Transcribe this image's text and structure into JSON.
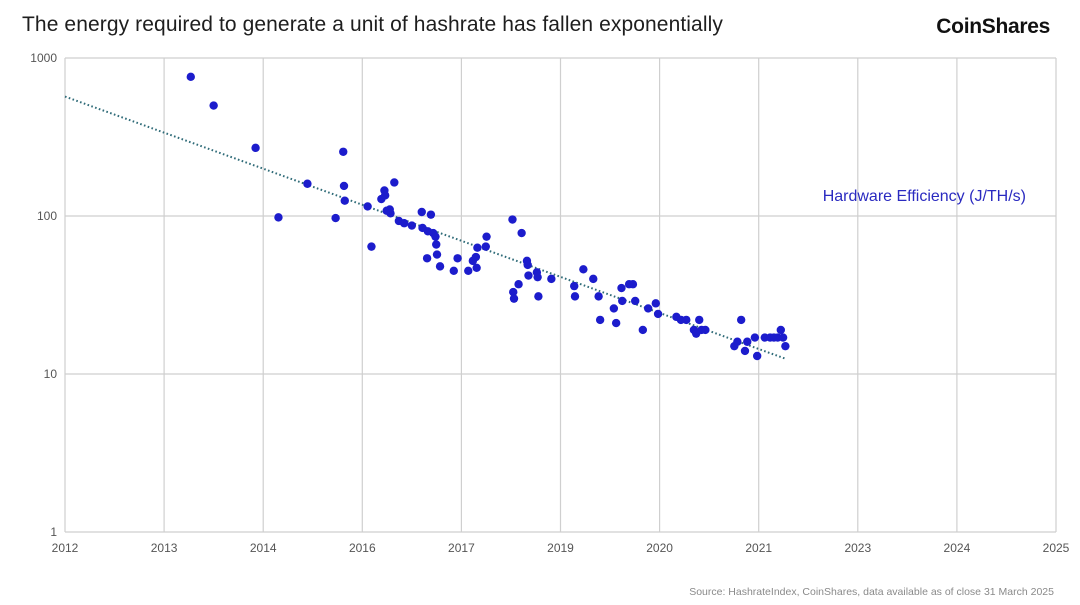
{
  "header": {
    "title": "The energy required to generate a unit of hashrate has fallen exponentially",
    "logo_text": "CoinShares"
  },
  "footer": {
    "source": "Source: HashrateIndex, CoinShares, data available as of close 31 March 2025"
  },
  "colors": {
    "points": "#1c1ccc",
    "trend": "#2f6b78",
    "grid": "#cfcfcf",
    "series_label": "#2a2ac0"
  },
  "chart_data": {
    "type": "scatter",
    "title": "",
    "xlabel": "",
    "ylabel": "",
    "y_scale": "log",
    "ylim": [
      1,
      1000
    ],
    "xlim": [
      2012,
      2025
    ],
    "grid": true,
    "y_ticks": [
      1,
      10,
      100,
      1000
    ],
    "x_tick_labels": [
      "2012",
      "2013",
      "2014",
      "2016",
      "2017",
      "2019",
      "2020",
      "2021",
      "2023",
      "2024",
      "2025"
    ],
    "series": [
      {
        "name": "Hardware Efficiency (J/TH/s)",
        "points": [
          [
            2013.65,
            760
          ],
          [
            2013.95,
            500
          ],
          [
            2014.5,
            270
          ],
          [
            2014.8,
            98
          ],
          [
            2015.18,
            160
          ],
          [
            2015.55,
            97
          ],
          [
            2015.65,
            255
          ],
          [
            2015.66,
            155
          ],
          [
            2015.67,
            125
          ],
          [
            2015.97,
            115
          ],
          [
            2016.02,
            64
          ],
          [
            2016.15,
            128
          ],
          [
            2016.19,
            145
          ],
          [
            2016.2,
            135
          ],
          [
            2016.22,
            108
          ],
          [
            2016.26,
            110
          ],
          [
            2016.27,
            104
          ],
          [
            2016.32,
            163
          ],
          [
            2016.38,
            93
          ],
          [
            2016.45,
            90
          ],
          [
            2016.55,
            87
          ],
          [
            2016.68,
            106
          ],
          [
            2016.69,
            84
          ],
          [
            2016.75,
            54
          ],
          [
            2016.76,
            80
          ],
          [
            2016.8,
            102
          ],
          [
            2016.83,
            78
          ],
          [
            2016.86,
            74
          ],
          [
            2016.87,
            66
          ],
          [
            2016.88,
            57
          ],
          [
            2016.92,
            48
          ],
          [
            2017.1,
            45
          ],
          [
            2017.15,
            54
          ],
          [
            2017.29,
            45
          ],
          [
            2017.35,
            52
          ],
          [
            2017.39,
            55
          ],
          [
            2017.4,
            47
          ],
          [
            2017.41,
            63
          ],
          [
            2017.52,
            64
          ],
          [
            2017.53,
            74
          ],
          [
            2017.87,
            95
          ],
          [
            2017.88,
            33
          ],
          [
            2017.89,
            30
          ],
          [
            2017.95,
            37
          ],
          [
            2017.99,
            78
          ],
          [
            2018.06,
            52
          ],
          [
            2018.07,
            49
          ],
          [
            2018.08,
            42
          ],
          [
            2018.19,
            44
          ],
          [
            2018.2,
            41
          ],
          [
            2018.21,
            31
          ],
          [
            2018.38,
            40
          ],
          [
            2018.68,
            36
          ],
          [
            2018.69,
            31
          ],
          [
            2018.8,
            46
          ],
          [
            2018.93,
            40
          ],
          [
            2019.0,
            31
          ],
          [
            2019.02,
            22
          ],
          [
            2019.2,
            26
          ],
          [
            2019.23,
            21
          ],
          [
            2019.3,
            35
          ],
          [
            2019.31,
            29
          ],
          [
            2019.4,
            37
          ],
          [
            2019.45,
            37
          ],
          [
            2019.48,
            29
          ],
          [
            2019.58,
            19
          ],
          [
            2019.65,
            26
          ],
          [
            2019.75,
            28
          ],
          [
            2019.78,
            24
          ],
          [
            2020.02,
            23
          ],
          [
            2020.08,
            22
          ],
          [
            2020.15,
            22
          ],
          [
            2020.25,
            19
          ],
          [
            2020.28,
            18
          ],
          [
            2020.32,
            22
          ],
          [
            2020.35,
            19
          ],
          [
            2020.4,
            19
          ],
          [
            2020.78,
            15
          ],
          [
            2020.82,
            16
          ],
          [
            2020.87,
            22
          ],
          [
            2020.92,
            14
          ],
          [
            2020.95,
            16
          ],
          [
            2021.05,
            17
          ],
          [
            2021.08,
            13
          ],
          [
            2021.18,
            17
          ],
          [
            2021.25,
            17
          ],
          [
            2021.3,
            17
          ],
          [
            2021.35,
            17
          ],
          [
            2021.39,
            19
          ],
          [
            2021.42,
            17
          ],
          [
            2021.45,
            15
          ]
        ]
      }
    ],
    "trendline": {
      "type": "exponential",
      "from": [
        2012,
        570
      ],
      "to": [
        2021.45,
        12.5
      ]
    }
  }
}
